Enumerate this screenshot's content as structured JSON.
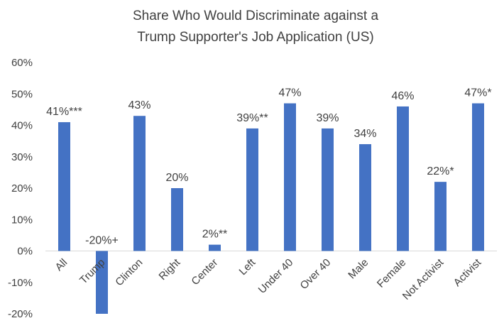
{
  "chart_data": {
    "type": "bar",
    "title_lines": [
      "Share Who Would Discriminate against a",
      "Trump Supporter's Job Application (US)"
    ],
    "categories": [
      "All",
      "Trump",
      "Clinton",
      "Right",
      "Center",
      "Left",
      "Under 40",
      "Over 40",
      "Male",
      "Female",
      "Not Activist",
      "Activist"
    ],
    "values": [
      41,
      -20,
      43,
      20,
      2,
      39,
      47,
      39,
      34,
      46,
      22,
      47
    ],
    "data_labels": [
      "41%***",
      "-20%+",
      "43%",
      "20%",
      "2%**",
      "39%**",
      "47%",
      "39%",
      "34%",
      "46%",
      "22%*",
      "47%*"
    ],
    "y_ticks": [
      60,
      50,
      40,
      30,
      20,
      10,
      0,
      -10,
      -20
    ],
    "y_tick_labels": [
      "60%",
      "50%",
      "40%",
      "30%",
      "20%",
      "10%",
      "0%",
      "-10%",
      "-20%"
    ],
    "ylim": [
      -20,
      60
    ],
    "xlabel": "",
    "ylabel": "",
    "grid": false,
    "legend": "none",
    "bar_color": "#4472C4"
  }
}
